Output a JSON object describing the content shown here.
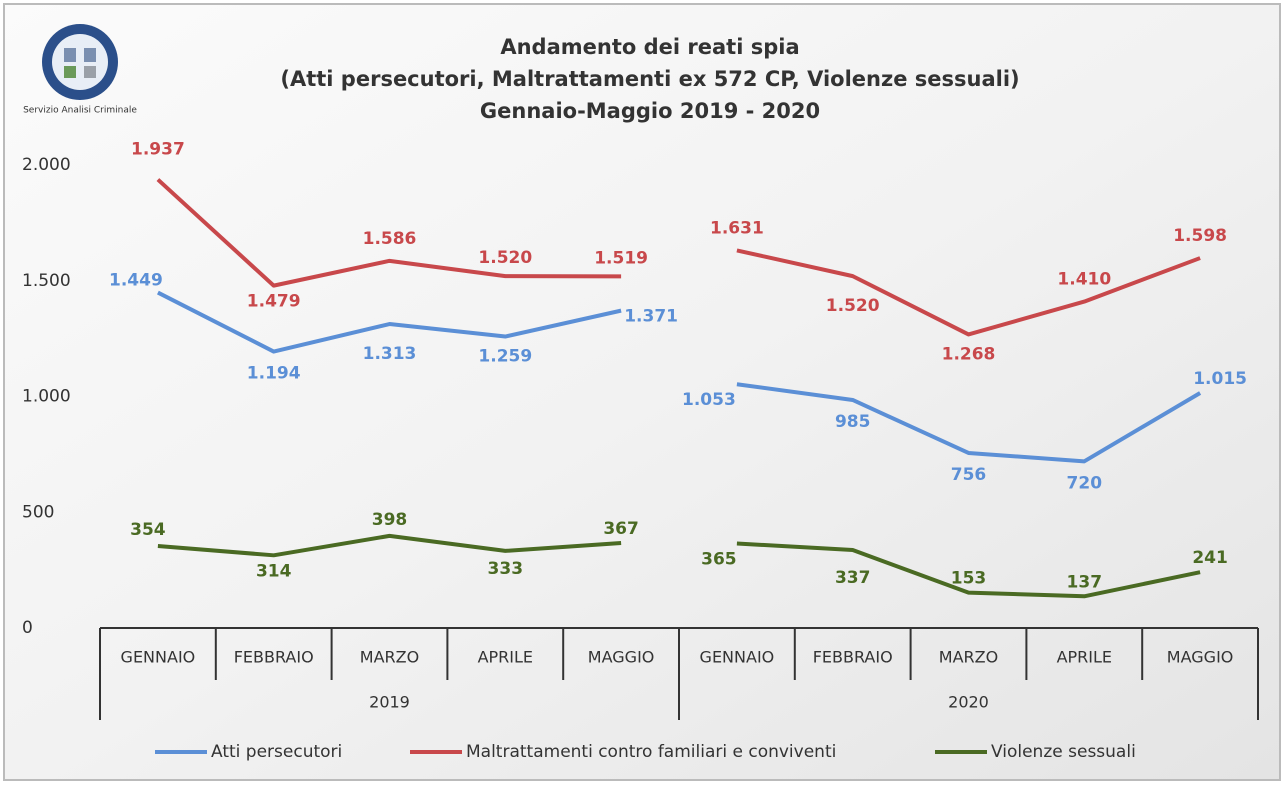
{
  "chart_data": {
    "type": "line",
    "logo_text": "Servizio Analisi Criminale",
    "title": [
      "Andamento dei reati spia",
      "(Atti persecutori, Maltrattamenti ex 572 CP, Violenze sessuali)",
      "Gennaio-Maggio 2019 - 2020"
    ],
    "categories": [
      "GENNAIO",
      "FEBBRAIO",
      "MARZO",
      "APRILE",
      "MAGGIO",
      "GENNAIO",
      "FEBBRAIO",
      "MARZO",
      "APRILE",
      "MAGGIO"
    ],
    "groups": [
      {
        "label": "2019",
        "size": 5
      },
      {
        "label": "2020",
        "size": 5
      }
    ],
    "ylim": [
      0,
      2000
    ],
    "yticks": [
      0,
      500,
      {
        "value": 1000,
        "label": "1.000"
      },
      {
        "value": 1500,
        "label": "1.500"
      },
      {
        "value": 2000,
        "label": "2.000"
      }
    ],
    "series": [
      {
        "name": "Atti persecutori",
        "color": "#5b8fd6",
        "values": [
          1449,
          1194,
          1313,
          1259,
          1371,
          1053,
          985,
          756,
          720,
          1015
        ],
        "value_labels": [
          "1.449",
          "1.194",
          "1.313",
          "1.259",
          "1.371",
          "1.053",
          "985",
          "756",
          "720",
          "1.015"
        ]
      },
      {
        "name": "Maltrattamenti contro familiari e conviventi",
        "color": "#c8484b",
        "values": [
          1937,
          1479,
          1586,
          1520,
          1519,
          1631,
          1520,
          1268,
          1410,
          1598
        ],
        "value_labels": [
          "1.937",
          "1.479",
          "1.586",
          "1.520",
          "1.519",
          "1.631",
          "1.520",
          "1.268",
          "1.410",
          "1.598"
        ]
      },
      {
        "name": "Violenze sessuali",
        "color": "#4a6a23",
        "values": [
          354,
          314,
          398,
          333,
          367,
          365,
          337,
          153,
          137,
          241
        ],
        "value_labels": [
          "354",
          "314",
          "398",
          "333",
          "367",
          "365",
          "337",
          "153",
          "137",
          "241"
        ]
      }
    ]
  }
}
